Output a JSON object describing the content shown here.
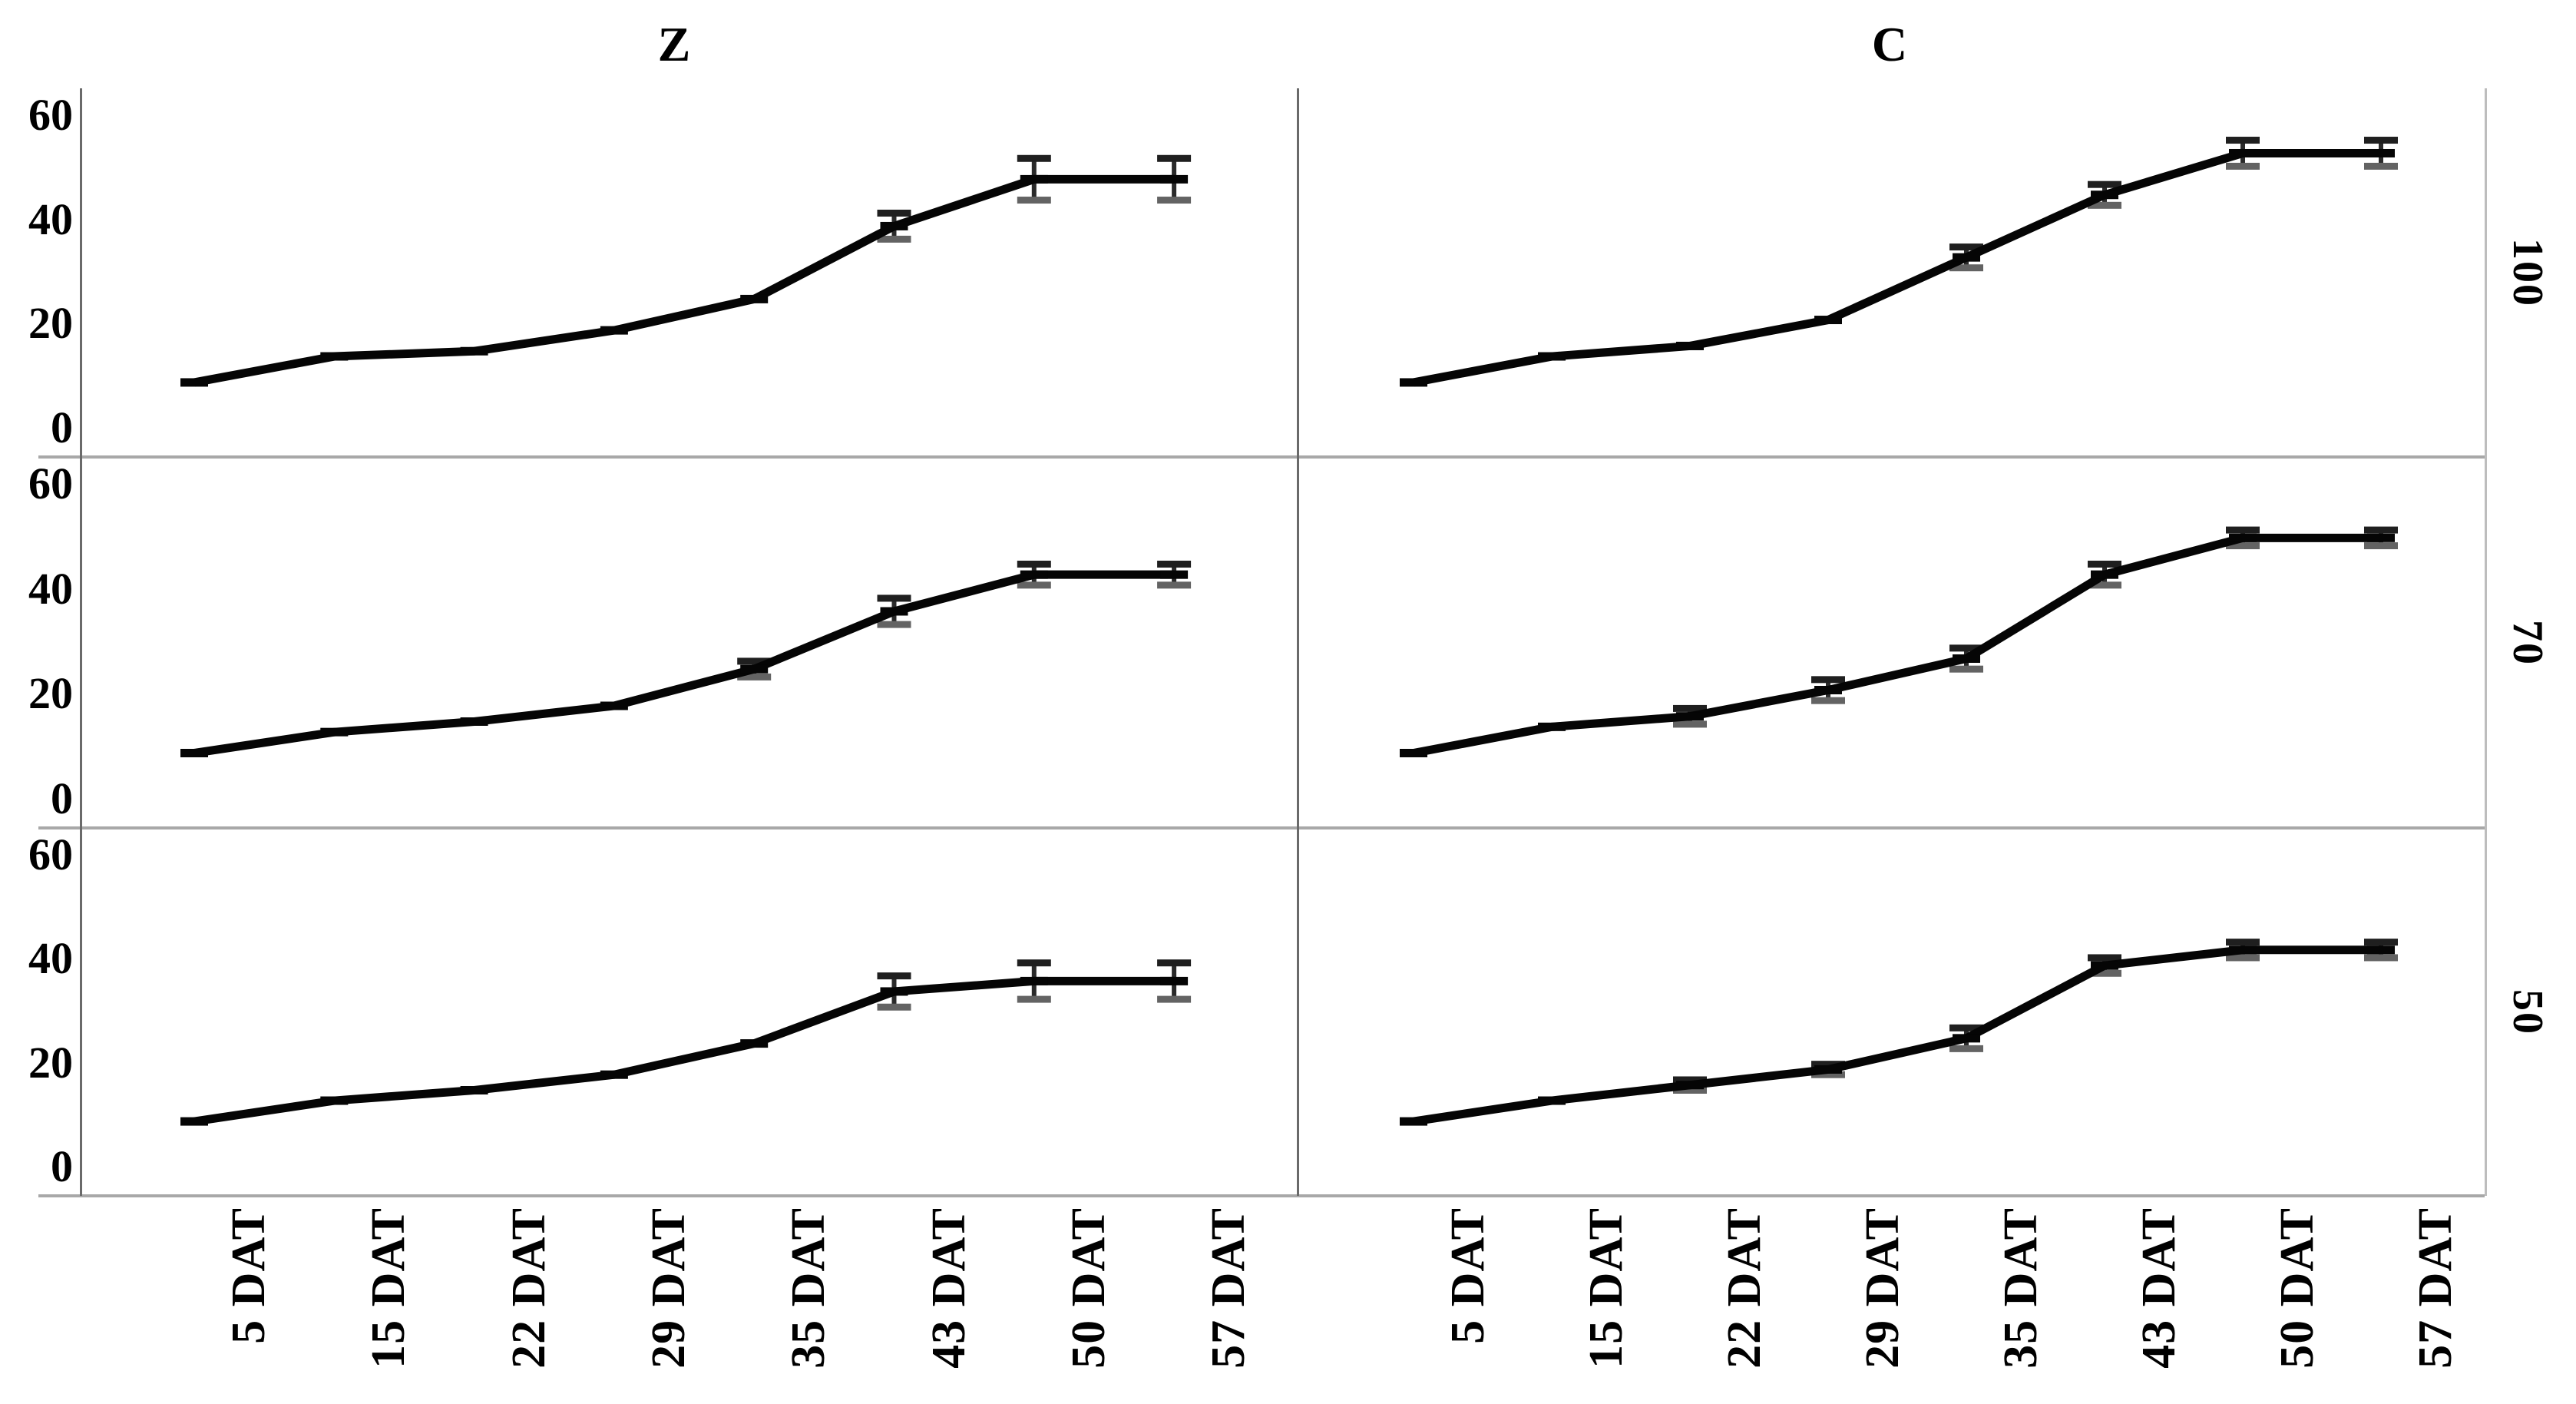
{
  "figure": {
    "col_titles": [
      "Z",
      "C"
    ],
    "row_labels": [
      "100",
      "70",
      "50"
    ],
    "y_tick_labels": [
      "0",
      "20",
      "40",
      "60"
    ],
    "x_tick_labels": [
      "5 DAT",
      "15 DAT",
      "22 DAT",
      "29 DAT",
      "35 DAT",
      "43 DAT",
      "50 DAT",
      "57 DAT"
    ],
    "colors": {
      "background": "#ffffff",
      "series_line": "#050505",
      "error_bar": "#2a2a2a",
      "error_cap_top": "#1f1f1f",
      "error_cap_bottom": "#636363",
      "y_axis_line": "#6a6a6a",
      "x_axis_line": "#a8a8a8",
      "right_border": "#bdbdbd",
      "text": "#000000"
    }
  },
  "chart_data": {
    "type": "line",
    "facets": "2 columns (Z, C) x 3 rows (100, 70, 50), shared axes",
    "categories": [
      "5 DAT",
      "15 DAT",
      "22 DAT",
      "29 DAT",
      "35 DAT",
      "43 DAT",
      "50 DAT",
      "57 DAT"
    ],
    "y_ticks": [
      0,
      20,
      40,
      60
    ],
    "ylim": [
      0,
      60
    ],
    "grid": false,
    "legend": null,
    "title": "",
    "xlabel": "",
    "ylabel": "",
    "panels": [
      {
        "col": "Z",
        "row": "100",
        "values": [
          9,
          14,
          15,
          19,
          25,
          39,
          48,
          48
        ],
        "errors": [
          null,
          null,
          null,
          null,
          null,
          2.5,
          4,
          4
        ]
      },
      {
        "col": "C",
        "row": "100",
        "values": [
          9,
          14,
          16,
          21,
          33,
          45,
          53,
          53
        ],
        "errors": [
          null,
          null,
          null,
          null,
          2,
          2,
          2.5,
          2.5
        ]
      },
      {
        "col": "Z",
        "row": "70",
        "values": [
          9,
          13,
          15,
          18,
          25,
          36,
          43,
          43
        ],
        "errors": [
          null,
          null,
          null,
          null,
          1.5,
          2.5,
          2,
          2
        ]
      },
      {
        "col": "C",
        "row": "70",
        "values": [
          9,
          14,
          16,
          21,
          27,
          43,
          50,
          50
        ],
        "errors": [
          null,
          null,
          1.5,
          2,
          2,
          2,
          1.5,
          1.5
        ]
      },
      {
        "col": "Z",
        "row": "50",
        "values": [
          9,
          13,
          15,
          18,
          24,
          34,
          36,
          36
        ],
        "errors": [
          null,
          null,
          null,
          null,
          null,
          3,
          3.5,
          3.5
        ]
      },
      {
        "col": "C",
        "row": "50",
        "values": [
          9,
          13,
          16,
          19,
          25,
          39,
          42,
          42
        ],
        "errors": [
          null,
          null,
          1,
          1,
          2,
          1.5,
          1.5,
          1.5
        ]
      }
    ]
  }
}
